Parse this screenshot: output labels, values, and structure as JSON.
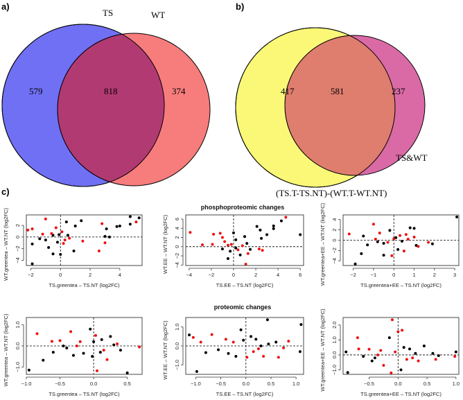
{
  "panel_labels": {
    "a": "a)",
    "b": "b)",
    "c": "c)"
  },
  "venn_a": {
    "set_labels": [
      "TS",
      "WT"
    ],
    "counts": {
      "only_left": "579",
      "both": "818",
      "only_right": "374"
    },
    "colors": {
      "left": "#7070f4",
      "right": "#f77c7c",
      "overlap": "#b23a73"
    }
  },
  "venn_b": {
    "set_labels": [
      "(TS.T-TS.NT)-(WT.T-WT.NT)",
      "TS&WT"
    ],
    "counts": {
      "only_left": "417",
      "both": "581",
      "only_right": "237"
    },
    "colors": {
      "left": "#fbf878",
      "right": "#da6aa6",
      "overlap": "#df7d6e"
    }
  },
  "row_titles": [
    "phosphoproteomic changes",
    "proteomic changes"
  ],
  "point_colors": {
    "0": "#000000",
    "1": "#ee1111"
  },
  "chart_data": [
    {
      "type": "scatter",
      "xlabel": "TS.greentea – TS.NT (log2FC)",
      "ylabel": "WT.greentea – WT.NT (log2FC)",
      "xlim": [
        -2.3,
        5.5
      ],
      "ylim": [
        -4.9,
        3.8
      ],
      "xticks": [
        -2,
        0,
        2,
        4
      ],
      "xtick_labels": [
        "−2",
        "0",
        "2",
        "4"
      ],
      "yticks": [
        -4,
        -2,
        0,
        2
      ],
      "ytick_labels": [
        "−4",
        "−2",
        "0",
        "2"
      ],
      "points": [
        [
          -2.2,
          1.2,
          1
        ],
        [
          -1.9,
          1.4,
          1
        ],
        [
          -1.0,
          3.1,
          1
        ],
        [
          -1.9,
          -1.2,
          0
        ],
        [
          -1.9,
          -4.6,
          0
        ],
        [
          -0.5,
          -2.9,
          0
        ],
        [
          0,
          -3,
          0
        ],
        [
          -1.2,
          0.5,
          1
        ],
        [
          -1,
          -0.5,
          0
        ],
        [
          -0.8,
          -1.8,
          0
        ],
        [
          -0.5,
          0.3,
          0
        ],
        [
          -0.3,
          1.6,
          1
        ],
        [
          -0.2,
          -0.9,
          0
        ],
        [
          0.1,
          0.9,
          1
        ],
        [
          0.3,
          -0.5,
          1
        ],
        [
          0.4,
          2.6,
          0
        ],
        [
          0.6,
          -0.2,
          1
        ],
        [
          0.9,
          -2.4,
          0
        ],
        [
          1.0,
          1.9,
          0
        ],
        [
          1.4,
          2.8,
          0
        ],
        [
          1.5,
          -0.7,
          1
        ],
        [
          2.6,
          -2.4,
          1
        ],
        [
          2.8,
          2.3,
          1
        ],
        [
          3.0,
          0.1,
          0
        ],
        [
          3.1,
          1.4,
          0
        ],
        [
          3.0,
          -1.0,
          1
        ],
        [
          3.3,
          0,
          0
        ],
        [
          3.8,
          1.8,
          0
        ],
        [
          4.0,
          1.9,
          0
        ],
        [
          4.7,
          2.2,
          0
        ],
        [
          4.7,
          3.5,
          0
        ],
        [
          5.1,
          2.6,
          1
        ],
        [
          5.3,
          3.3,
          0
        ],
        [
          -1.4,
          -0.3,
          0
        ],
        [
          -0.6,
          0.6,
          1
        ],
        [
          0.5,
          0.3,
          0
        ],
        [
          0.2,
          -1.1,
          1
        ],
        [
          -0.1,
          0.4,
          0
        ]
      ]
    },
    {
      "type": "scatter",
      "xlabel": "TS.EE – TS.NT (log2FC)",
      "ylabel": "WT.EE – WT.NT (log2FC)",
      "xlim": [
        -4.3,
        6.3
      ],
      "ylim": [
        -4.1,
        6.9
      ],
      "xticks": [
        -4,
        -2,
        0,
        2,
        4,
        6
      ],
      "xtick_labels": [
        "−4",
        "−2",
        "0",
        "2",
        "4",
        "6"
      ],
      "yticks": [
        -4,
        -2,
        0,
        2,
        4,
        6
      ],
      "ytick_labels": [
        "−4",
        "−2",
        "0",
        "2",
        "4",
        "6"
      ],
      "points": [
        [
          -3.9,
          3.1,
          1
        ],
        [
          -2.8,
          0.4,
          1
        ],
        [
          -1.9,
          0.5,
          1
        ],
        [
          -1.8,
          2.7,
          1
        ],
        [
          -1.2,
          2.9,
          1
        ],
        [
          -1.0,
          2.0,
          1
        ],
        [
          -0.8,
          1.1,
          1
        ],
        [
          -0.5,
          -2.6,
          0
        ],
        [
          -0.5,
          0.3,
          1
        ],
        [
          -0.3,
          -1.0,
          0
        ],
        [
          0,
          3.0,
          0
        ],
        [
          0.2,
          1.5,
          0
        ],
        [
          0.4,
          -0.7,
          1
        ],
        [
          0.6,
          -1.8,
          0
        ],
        [
          1.0,
          2.2,
          0
        ],
        [
          1.1,
          -3.8,
          1
        ],
        [
          1.2,
          0.7,
          0
        ],
        [
          1.3,
          -1.5,
          1
        ],
        [
          1.5,
          -0.6,
          0
        ],
        [
          2.1,
          4.4,
          0
        ],
        [
          2.3,
          -0.5,
          1
        ],
        [
          2.4,
          3.6,
          0
        ],
        [
          2.5,
          1.8,
          0
        ],
        [
          2.6,
          -0.8,
          1
        ],
        [
          3.0,
          2.6,
          0
        ],
        [
          3.6,
          4.5,
          0
        ],
        [
          3.6,
          3.9,
          0
        ],
        [
          4.3,
          5.6,
          0
        ],
        [
          4.7,
          6.4,
          1
        ],
        [
          6.0,
          2.6,
          0
        ],
        [
          -1.0,
          -0.5,
          0
        ],
        [
          -0.2,
          0.5,
          1
        ],
        [
          0.2,
          -0.3,
          0
        ],
        [
          0.8,
          0.2,
          1
        ]
      ]
    },
    {
      "type": "scatter",
      "xlabel": "TS.greentea+EE – TS.NT (log2FC)",
      "ylabel": "WT.greentea+EE – WT.NT (log2FC)",
      "xlim": [
        -2.5,
        3.2
      ],
      "ylim": [
        -4.9,
        4.9
      ],
      "xticks": [
        -2,
        -1,
        0,
        1,
        2,
        3
      ],
      "xtick_labels": [
        "−2",
        "−1",
        "0",
        "1",
        "2",
        "3"
      ],
      "yticks": [
        -4,
        -2,
        0,
        2,
        4
      ],
      "ytick_labels": [
        "−4",
        "−2",
        "0",
        "2",
        "4"
      ],
      "points": [
        [
          -2.2,
          1.2,
          1
        ],
        [
          -1.9,
          -4.6,
          0
        ],
        [
          -1.6,
          -2.6,
          0
        ],
        [
          -1.5,
          0.8,
          0
        ],
        [
          -1.3,
          -0.9,
          0
        ],
        [
          -1.0,
          3.1,
          1
        ],
        [
          -0.9,
          0.2,
          1
        ],
        [
          -0.7,
          1.4,
          1
        ],
        [
          -0.5,
          -2.9,
          0
        ],
        [
          -0.5,
          -0.6,
          0
        ],
        [
          -0.2,
          1.9,
          0
        ],
        [
          -0.1,
          -3.0,
          1
        ],
        [
          0,
          0.3,
          1
        ],
        [
          0.2,
          -1.8,
          0
        ],
        [
          0.3,
          0.9,
          1
        ],
        [
          0.4,
          -0.2,
          0
        ],
        [
          0.5,
          -2.1,
          1
        ],
        [
          0.6,
          1.1,
          1
        ],
        [
          0.8,
          2.4,
          0
        ],
        [
          1.0,
          2.3,
          0
        ],
        [
          1.0,
          0.6,
          1
        ],
        [
          1.1,
          -1.0,
          0
        ],
        [
          1.2,
          -1.2,
          1
        ],
        [
          1.7,
          -0.4,
          1
        ],
        [
          1.9,
          -0.7,
          0
        ],
        [
          3.1,
          4.5,
          0
        ],
        [
          -0.8,
          -0.3,
          0
        ],
        [
          0.1,
          0.5,
          0
        ],
        [
          0.7,
          0.2,
          1
        ],
        [
          -0.3,
          -0.4,
          1
        ]
      ]
    },
    {
      "type": "scatter",
      "xlabel": "TS.greentea – TS.NT (log2FC)",
      "ylabel": "WT.greentea – WT.NT (log2FC)",
      "xlim": [
        -1.0,
        0.72
      ],
      "ylim": [
        -1.35,
        1.35
      ],
      "xticks": [
        -1,
        -0.5,
        0,
        0.5
      ],
      "xtick_labels": [
        "−1.0",
        "−0.5",
        "0.0",
        "0.5"
      ],
      "yticks": [
        -1,
        0,
        1
      ],
      "ytick_labels": [
        "−1.0",
        "0.0",
        "1.0"
      ],
      "points": [
        [
          -0.96,
          -1.15,
          0
        ],
        [
          -0.84,
          0.58,
          1
        ],
        [
          -0.75,
          -0.68,
          0
        ],
        [
          -0.62,
          0.22,
          1
        ],
        [
          -0.6,
          -0.3,
          0
        ],
        [
          -0.5,
          0.25,
          1
        ],
        [
          -0.4,
          -0.1,
          0
        ],
        [
          -0.34,
          0.68,
          1
        ],
        [
          -0.3,
          -0.45,
          0
        ],
        [
          -0.2,
          0.2,
          1
        ],
        [
          -0.15,
          -0.35,
          0
        ],
        [
          -0.05,
          0.8,
          0
        ],
        [
          -0.02,
          -0.5,
          0
        ],
        [
          0.03,
          0.5,
          1
        ],
        [
          0.05,
          -1.18,
          1
        ],
        [
          0.1,
          -0.3,
          0
        ],
        [
          0.12,
          0.3,
          0
        ],
        [
          0.15,
          -0.2,
          1
        ],
        [
          0.2,
          -0.65,
          1
        ],
        [
          0.25,
          0.45,
          0
        ],
        [
          0.3,
          0.05,
          0
        ],
        [
          0.35,
          0.1,
          1
        ],
        [
          0.4,
          -0.2,
          0
        ],
        [
          0.5,
          -1.28,
          0
        ],
        [
          0.68,
          -0.05,
          1
        ],
        [
          -0.45,
          0,
          0
        ],
        [
          0.0,
          0.2,
          0
        ],
        [
          -0.25,
          0.0,
          1
        ]
      ]
    },
    {
      "type": "scatter",
      "xlabel": "TS.EE – TS.NT (log2FC)",
      "ylabel": "WT.EE – WT.NT (log2FC)",
      "xlim": [
        -1.2,
        1.15
      ],
      "ylim": [
        -1.5,
        1.5
      ],
      "xticks": [
        -1,
        -0.5,
        0,
        0.5,
        1
      ],
      "xtick_labels": [
        "−1.0",
        "−0.5",
        "0.0",
        "0.5",
        "1.0"
      ],
      "yticks": [
        -1,
        0,
        1
      ],
      "ytick_labels": [
        "−1.0",
        "0.0",
        "1.0"
      ],
      "points": [
        [
          -1.13,
          0.58,
          0
        ],
        [
          -1.05,
          0.45,
          1
        ],
        [
          -0.98,
          -1.35,
          0
        ],
        [
          -0.9,
          0.2,
          1
        ],
        [
          -0.8,
          -0.35,
          0
        ],
        [
          -0.68,
          0.6,
          1
        ],
        [
          -0.55,
          -0.2,
          0
        ],
        [
          -0.4,
          0.35,
          1
        ],
        [
          -0.35,
          -0.4,
          0
        ],
        [
          -0.25,
          0.2,
          1
        ],
        [
          -0.2,
          -0.55,
          0
        ],
        [
          -0.1,
          0.85,
          0
        ],
        [
          -0.05,
          0.3,
          0
        ],
        [
          0.02,
          -0.6,
          1
        ],
        [
          0.1,
          0.5,
          0
        ],
        [
          0.15,
          -0.3,
          1
        ],
        [
          0.2,
          0.35,
          0
        ],
        [
          0.25,
          -0.15,
          1
        ],
        [
          0.3,
          0,
          0
        ],
        [
          0.35,
          -0.55,
          1
        ],
        [
          0.43,
          1.38,
          0
        ],
        [
          0.45,
          0.1,
          0
        ],
        [
          0.6,
          0.2,
          0
        ],
        [
          0.65,
          -0.6,
          1
        ],
        [
          0.75,
          -0.1,
          1
        ],
        [
          0.85,
          0.25,
          1
        ],
        [
          1.08,
          -0.3,
          0
        ],
        [
          1.1,
          1.13,
          0
        ]
      ]
    },
    {
      "type": "scatter",
      "xlabel": "TS.greentea+EE – TS.NT (log2FC)",
      "ylabel": "WT.greentea+EE – WT.NT (log2FC)",
      "xlim": [
        -0.95,
        1.05
      ],
      "ylim": [
        -1.3,
        2.5
      ],
      "xticks": [
        -0.5,
        0,
        0.5,
        1
      ],
      "xtick_labels": [
        "−0.5",
        "0.0",
        "0.5",
        "1.0"
      ],
      "yticks": [
        -1,
        0,
        1,
        2
      ],
      "ytick_labels": [
        "−1.0",
        "0.0",
        "1.0",
        "2.0"
      ],
      "points": [
        [
          -0.9,
          0.2,
          0
        ],
        [
          -0.87,
          -1.18,
          0
        ],
        [
          -0.7,
          1.15,
          1
        ],
        [
          -0.68,
          0.4,
          1
        ],
        [
          -0.6,
          -0.1,
          0
        ],
        [
          -0.5,
          0.38,
          1
        ],
        [
          -0.45,
          -0.4,
          0
        ],
        [
          -0.4,
          -0.2,
          0
        ],
        [
          -0.3,
          0.3,
          1
        ],
        [
          -0.25,
          -0.7,
          1
        ],
        [
          -0.15,
          1.15,
          0
        ],
        [
          -0.1,
          2.35,
          1
        ],
        [
          -0.12,
          -1.2,
          1
        ],
        [
          -0.05,
          0.2,
          1
        ],
        [
          0,
          1.55,
          1
        ],
        [
          0.05,
          -1.0,
          0
        ],
        [
          0.07,
          1.65,
          1
        ],
        [
          0.1,
          0.5,
          0
        ],
        [
          0.15,
          -0.3,
          1
        ],
        [
          0.2,
          0.4,
          0
        ],
        [
          0.25,
          -0.2,
          1
        ],
        [
          0.3,
          0.1,
          0
        ],
        [
          0.35,
          -0.4,
          1
        ],
        [
          0.45,
          0.6,
          0
        ],
        [
          0.6,
          0.1,
          0
        ],
        [
          0.65,
          -0.3,
          1
        ],
        [
          0.7,
          -0.05,
          0
        ],
        [
          1.0,
          0.2,
          0
        ],
        [
          0.98,
          -0.1,
          1
        ],
        [
          -0.35,
          0,
          1
        ]
      ]
    }
  ]
}
